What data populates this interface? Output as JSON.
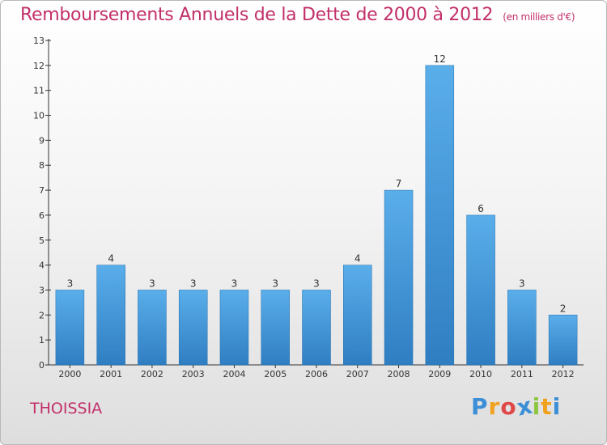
{
  "title": "Remboursements Annuels de la Dette de 2000 à 2012",
  "unit": "(en milliers d'€)",
  "commune": "THOISSIA",
  "logo": {
    "text": "Proxiti",
    "letters": [
      "P",
      "r",
      "o",
      "x",
      "i",
      "t",
      "i"
    ],
    "colors": [
      "#3b8fd6",
      "#f0a21e",
      "#e04848",
      "#3b8fd6",
      "#8cc63f",
      "#f0a21e",
      "#3b8fd6"
    ]
  },
  "colors": {
    "title": "#c2306a",
    "bar_top": "#5aaeea",
    "bar_bottom": "#2f7ec2",
    "axis": "#333333"
  },
  "chart_data": {
    "type": "bar",
    "categories": [
      "2000",
      "2001",
      "2002",
      "2003",
      "2004",
      "2005",
      "2006",
      "2007",
      "2008",
      "2009",
      "2010",
      "2011",
      "2012"
    ],
    "values": [
      3,
      4,
      3,
      3,
      3,
      3,
      3,
      4,
      7,
      12,
      6,
      3,
      2
    ],
    "ylim": [
      0,
      13
    ],
    "yticks": [
      0,
      1,
      2,
      3,
      4,
      5,
      6,
      7,
      8,
      9,
      10,
      11,
      12,
      13
    ],
    "title": "Remboursements Annuels de la Dette de 2000 à 2012",
    "xlabel": "",
    "ylabel": "",
    "grid": false,
    "legend": "none",
    "data_labels": true
  }
}
